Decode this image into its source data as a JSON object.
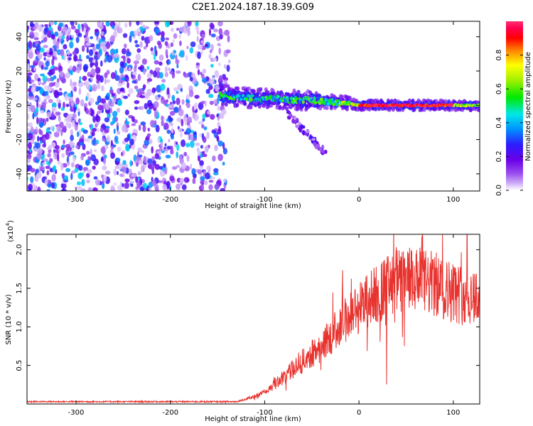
{
  "title": "C2E1.2024.187.18.39.G09",
  "chart_data": [
    {
      "type": "heatmap",
      "xlabel": "Height of straight line (km)",
      "ylabel": "Frequency (Hz)",
      "xlim": [
        -352,
        128
      ],
      "ylim": [
        -50,
        49
      ],
      "xticks": [
        -300,
        -200,
        -100,
        0,
        100
      ],
      "yticks": [
        -40,
        -20,
        0,
        20,
        40
      ],
      "grid": false,
      "colorbar": {
        "label": "Normalized spectral amplitude",
        "range": [
          0,
          1
        ],
        "ticks": [
          0.0,
          0.2,
          0.4,
          0.6,
          0.8
        ],
        "colors": [
          "#ffffff",
          "#d0b0f8",
          "#9a4df0",
          "#6a00e8",
          "#2c1cff",
          "#0090ff",
          "#00e8e8",
          "#00e800",
          "#a0f000",
          "#ffff00",
          "#ff8000",
          "#ff0000",
          "#ff0050",
          "#ff3070"
        ]
      },
      "regions": [
        {
          "name": "noise",
          "x": [
            -352,
            -137
          ],
          "freq": [
            -50,
            49
          ],
          "amplitude": [
            0.05,
            0.45
          ]
        },
        {
          "name": "signal",
          "x": [
            -148,
            128
          ],
          "freq_center": [
            [
              -148,
              6
            ],
            [
              -130,
              5
            ],
            [
              -110,
              4
            ],
            [
              -90,
              4
            ],
            [
              -70,
              3
            ],
            [
              -50,
              3
            ],
            [
              -30,
              2
            ],
            [
              -10,
              1
            ],
            [
              0,
              0
            ],
            [
              50,
              0
            ],
            [
              100,
              0
            ],
            [
              128,
              0
            ]
          ],
          "amplitude": [
            0.3,
            1.0
          ]
        },
        {
          "name": "tail",
          "x": [
            -75,
            -35
          ],
          "freq": [
            -28,
            -5
          ],
          "amplitude": [
            0.1,
            0.3
          ]
        }
      ]
    },
    {
      "type": "line",
      "xlabel": "Height of straight line (km)",
      "ylabel": "SNR (10 * v/v)",
      "yscale_label": "(x10",
      "yscale_exp": "4",
      "xlim": [
        -352,
        128
      ],
      "ylim": [
        0,
        2.2
      ],
      "xticks": [
        -300,
        -200,
        -100,
        0,
        100
      ],
      "yticks": [
        0.5,
        1.0,
        1.5,
        2.0
      ],
      "grid": false,
      "series": [
        {
          "color": "#e8322e",
          "envelope": [
            [
              -352,
              0.03
            ],
            [
              -200,
              0.03
            ],
            [
              -130,
              0.03
            ],
            [
              -115,
              0.08
            ],
            [
              -100,
              0.15
            ],
            [
              -80,
              0.35
            ],
            [
              -60,
              0.55
            ],
            [
              -40,
              0.75
            ],
            [
              -25,
              0.95
            ],
            [
              -10,
              1.15
            ],
            [
              0,
              1.25
            ],
            [
              10,
              1.35
            ],
            [
              25,
              1.48
            ],
            [
              40,
              1.58
            ],
            [
              60,
              1.6
            ],
            [
              80,
              1.55
            ],
            [
              100,
              1.45
            ],
            [
              115,
              1.4
            ],
            [
              128,
              1.4
            ]
          ]
        }
      ]
    }
  ]
}
